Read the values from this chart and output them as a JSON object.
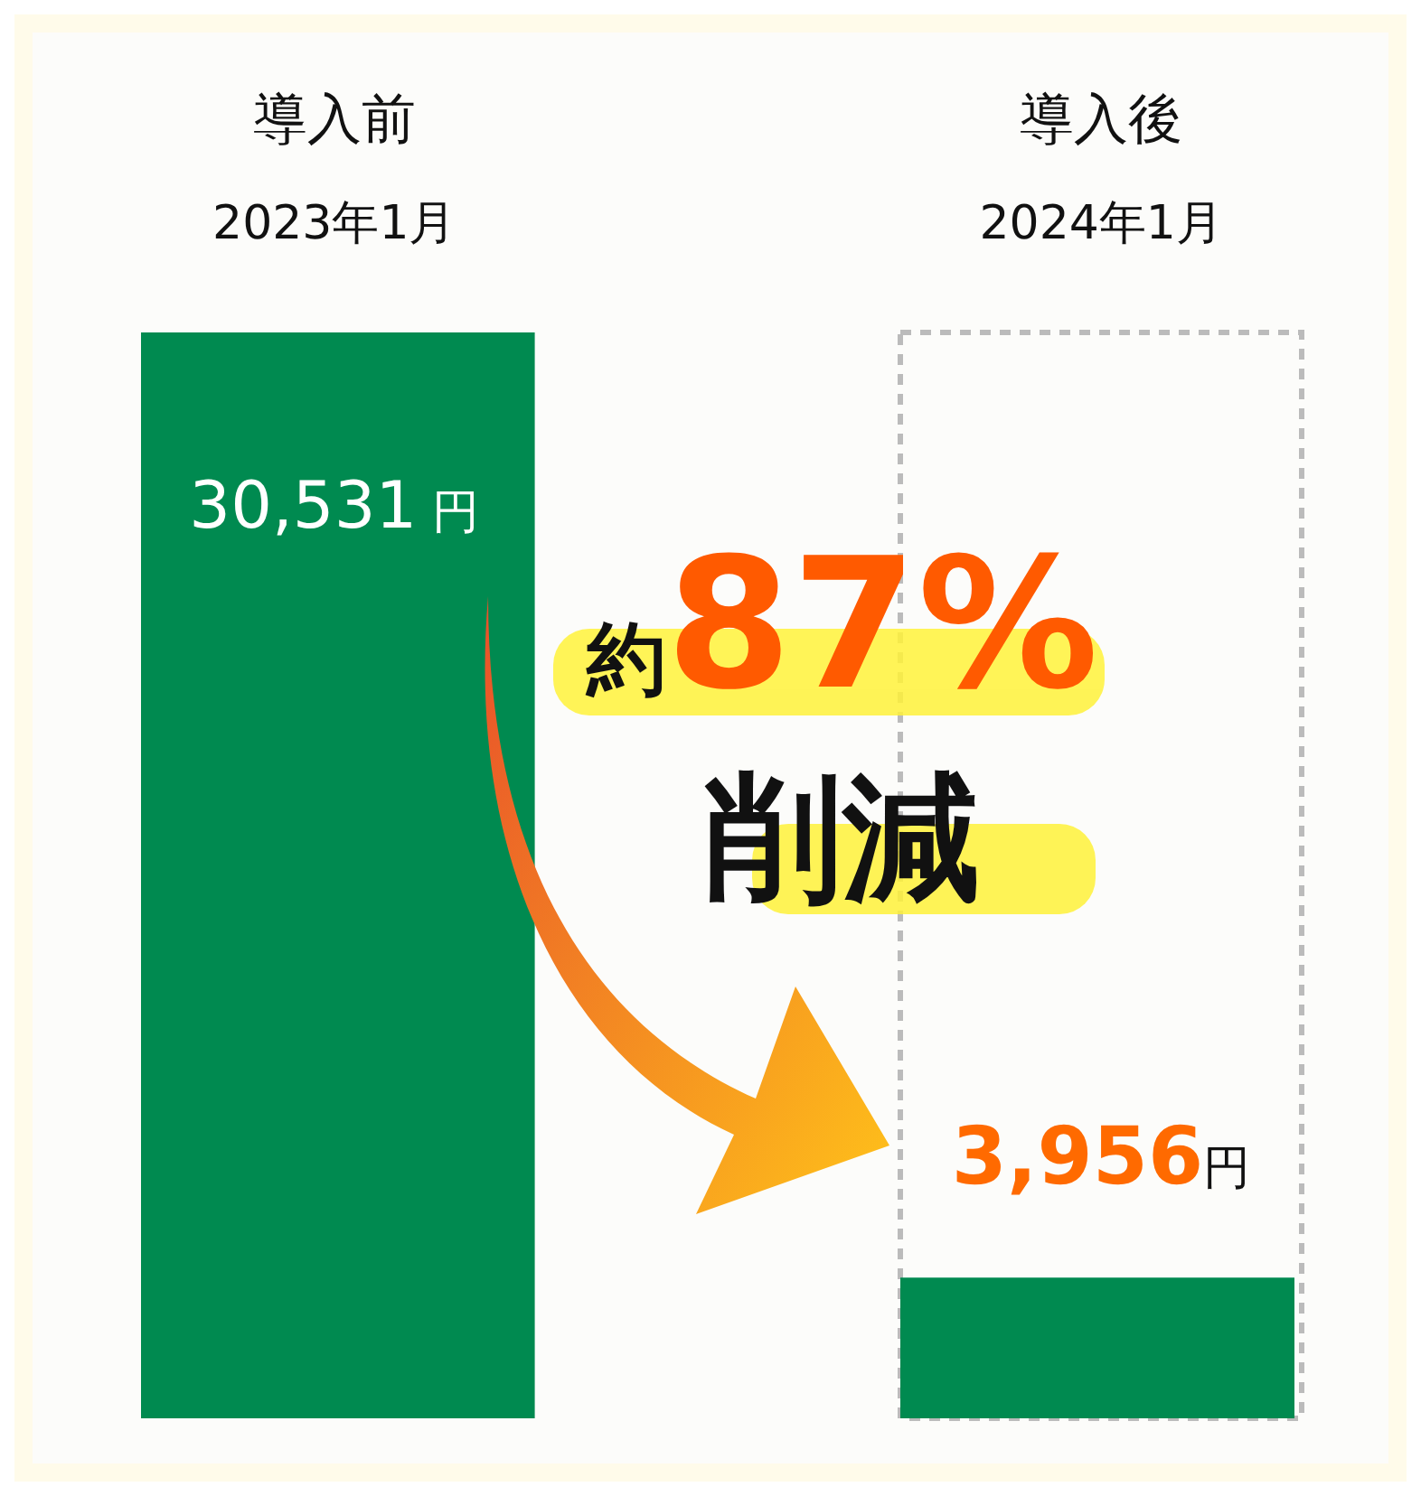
{
  "chart_data": {
    "type": "bar",
    "categories": [
      "導入前\n2023年1月",
      "導入後\n2024年1月"
    ],
    "values": [
      30531,
      3956
    ],
    "color": "#008a50",
    "value_labels": [
      "30,531 円",
      "3,956円"
    ],
    "annotations": [
      "約87%\n削減"
    ]
  }
}
